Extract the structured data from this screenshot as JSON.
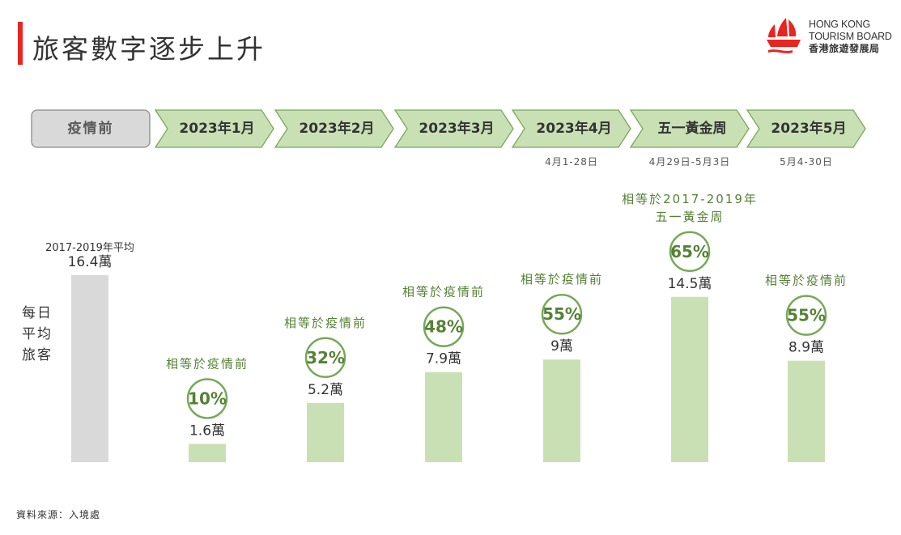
{
  "header": {
    "title": "旅客數字逐步上升",
    "accent_color": "#e8251f"
  },
  "logo": {
    "line1": "HONG KONG",
    "line2": "TOURISM BOARD",
    "line3": "香港旅遊發展局",
    "icon": "junk-boat-logo",
    "color": "#e8251f"
  },
  "timeline": {
    "pre": {
      "label": "疫情前"
    },
    "stages": [
      {
        "label": "2023年1月",
        "sub": ""
      },
      {
        "label": "2023年2月",
        "sub": ""
      },
      {
        "label": "2023年3月",
        "sub": ""
      },
      {
        "label": "2023年4月",
        "sub": "4月1-28日"
      },
      {
        "label": "五一黃金周",
        "sub": "4月29日-5月3日"
      },
      {
        "label": "2023年5月",
        "sub": "5月4-30日"
      }
    ]
  },
  "y_axis_label": [
    "每日",
    "平均",
    "旅客"
  ],
  "chart_data": {
    "type": "bar",
    "title": "旅客數字逐步上升",
    "ylabel": "每日平均旅客",
    "unit": "萬",
    "ylim": [
      0,
      16.4
    ],
    "categories": [
      "疫情前",
      "2023年1月",
      "2023年2月",
      "2023年3月",
      "2023年4月",
      "五一黃金周",
      "2023年5月"
    ],
    "values": [
      16.4,
      1.6,
      5.2,
      7.9,
      9,
      14.5,
      8.9
    ],
    "value_labels": [
      "16.4萬",
      "1.6萬",
      "5.2萬",
      "7.9萬",
      "9萬",
      "14.5萬",
      "8.9萬"
    ],
    "percent_of_pre": [
      null,
      "10%",
      "32%",
      "48%",
      "55%",
      "65%",
      "55%"
    ],
    "notes": [
      "2017-2019年平均",
      "相等於疫情前",
      "相等於疫情前",
      "相等於疫情前",
      "相等於疫情前",
      "相等於2017-2019年\n五一黃金周",
      "相等於疫情前"
    ],
    "colors": {
      "baseline_bar": "#d9d9d9",
      "bar": "#c9e0b4",
      "accent": "#548235",
      "pill_fill": "#c9e0b4",
      "pill_border": "#76a957",
      "pre_fill": "#d9d9d9"
    }
  },
  "footer": {
    "source": "資料來源：入境處"
  }
}
